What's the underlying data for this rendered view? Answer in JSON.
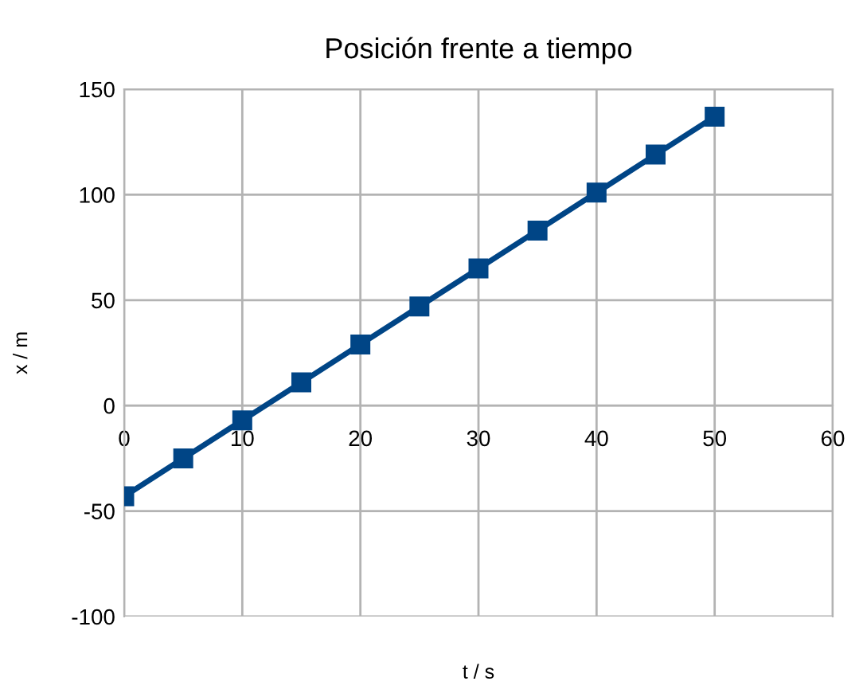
{
  "chart_data": {
    "type": "line",
    "title": "Posición frente a tiempo",
    "xlabel": "t / s",
    "ylabel": "x / m",
    "x": [
      0,
      5,
      10,
      15,
      20,
      25,
      30,
      35,
      40,
      45,
      50
    ],
    "series": [
      {
        "color": "#004586",
        "values": [
          -43,
          -25,
          -7,
          11,
          29,
          47,
          65,
          83,
          101,
          119,
          137
        ]
      }
    ],
    "xlim": [
      0,
      60
    ],
    "xticks": [
      0,
      10,
      20,
      30,
      40,
      50,
      60
    ],
    "ylim": [
      -100,
      150
    ],
    "yticks": [
      -100,
      -50,
      0,
      50,
      100,
      150
    ],
    "grid": true,
    "marker": "square",
    "line_style": "solid",
    "legend": false
  }
}
